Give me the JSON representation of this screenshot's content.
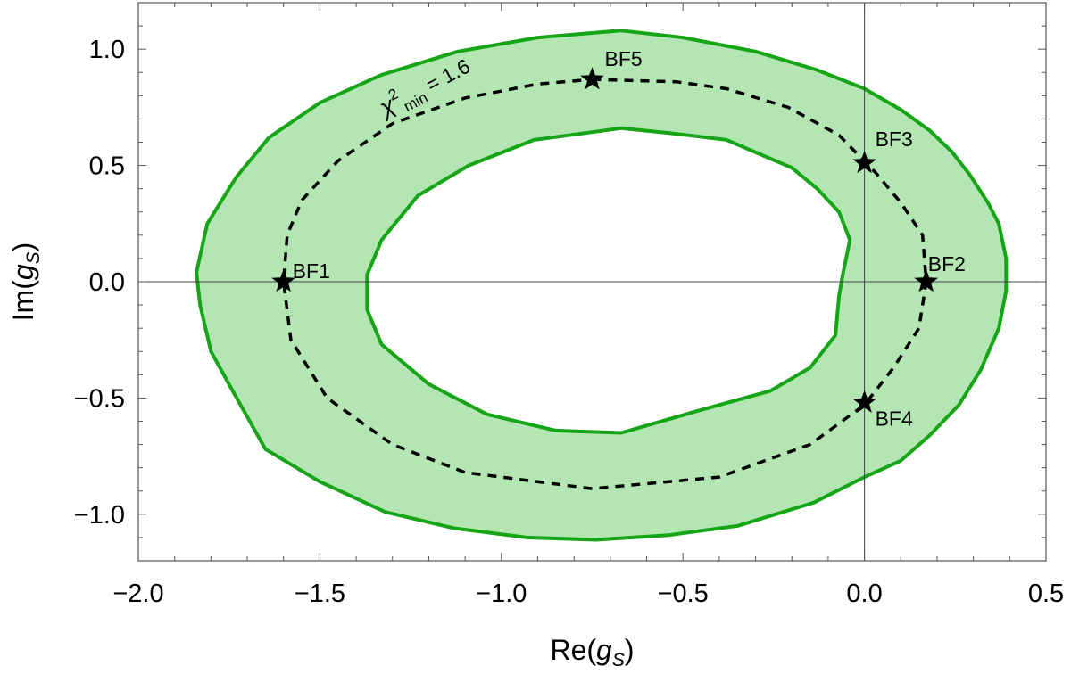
{
  "chart_data": {
    "type": "region",
    "xlabel": "Re(gS)",
    "ylabel": "Im(gS)",
    "xlim": [
      -2.0,
      0.5
    ],
    "ylim": [
      -1.2,
      1.2
    ],
    "x_ticks": [
      "−2.0",
      "−1.5",
      "−1.0",
      "−0.5",
      "0.0",
      "0.5"
    ],
    "y_ticks": [
      "−1.0",
      "−0.5",
      "0.0",
      "0.5",
      "1.0"
    ],
    "grid": false,
    "colors": {
      "band_fill": "#b3e6b3",
      "band_stroke": "#16a516",
      "contour": "#000000",
      "axes": "#555555"
    },
    "outer_boundary": [
      [
        -0.67,
        1.08
      ],
      [
        -0.5,
        1.05
      ],
      [
        -0.3,
        0.99
      ],
      [
        -0.13,
        0.91
      ],
      [
        0.0,
        0.83
      ],
      [
        0.1,
        0.74
      ],
      [
        0.18,
        0.65
      ],
      [
        0.24,
        0.56
      ],
      [
        0.29,
        0.46
      ],
      [
        0.34,
        0.34
      ],
      [
        0.37,
        0.25
      ],
      [
        0.39,
        0.1
      ],
      [
        0.39,
        -0.04
      ],
      [
        0.37,
        -0.2
      ],
      [
        0.32,
        -0.38
      ],
      [
        0.26,
        -0.53
      ],
      [
        0.18,
        -0.66
      ],
      [
        0.1,
        -0.77
      ],
      [
        0.0,
        -0.84
      ],
      [
        -0.14,
        -0.95
      ],
      [
        -0.35,
        -1.05
      ],
      [
        -0.54,
        -1.09
      ],
      [
        -0.74,
        -1.11
      ],
      [
        -0.93,
        -1.1
      ],
      [
        -1.13,
        -1.06
      ],
      [
        -1.32,
        -0.99
      ],
      [
        -1.5,
        -0.86
      ],
      [
        -1.65,
        -0.72
      ],
      [
        -1.74,
        -0.47
      ],
      [
        -1.8,
        -0.3
      ],
      [
        -1.83,
        -0.1
      ],
      [
        -1.84,
        0.04
      ],
      [
        -1.81,
        0.25
      ],
      [
        -1.73,
        0.45
      ],
      [
        -1.64,
        0.62
      ],
      [
        -1.5,
        0.77
      ],
      [
        -1.33,
        0.89
      ],
      [
        -1.12,
        0.99
      ],
      [
        -0.9,
        1.05
      ],
      [
        -0.67,
        1.08
      ]
    ],
    "inner_boundary": [
      [
        -0.67,
        0.66
      ],
      [
        -0.54,
        0.64
      ],
      [
        -0.38,
        0.61
      ],
      [
        -0.2,
        0.49
      ],
      [
        -0.13,
        0.4
      ],
      [
        -0.07,
        0.3
      ],
      [
        -0.04,
        0.18
      ],
      [
        -0.06,
        0.03
      ],
      [
        -0.07,
        -0.06
      ],
      [
        -0.08,
        -0.23
      ],
      [
        -0.15,
        -0.37
      ],
      [
        -0.26,
        -0.47
      ],
      [
        -0.47,
        -0.56
      ],
      [
        -0.67,
        -0.65
      ],
      [
        -0.85,
        -0.64
      ],
      [
        -1.04,
        -0.57
      ],
      [
        -1.2,
        -0.44
      ],
      [
        -1.33,
        -0.27
      ],
      [
        -1.37,
        -0.12
      ],
      [
        -1.37,
        0.03
      ],
      [
        -1.33,
        0.18
      ],
      [
        -1.23,
        0.37
      ],
      [
        -1.09,
        0.5
      ],
      [
        -0.91,
        0.61
      ],
      [
        -0.67,
        0.66
      ]
    ],
    "contour": {
      "label_main": "χ",
      "label_sup": "2",
      "label_sub": "min",
      "label_value": "= 1.6",
      "points": [
        [
          -0.75,
          0.87
        ],
        [
          -0.52,
          0.86
        ],
        [
          -0.38,
          0.83
        ],
        [
          -0.21,
          0.75
        ],
        [
          -0.07,
          0.63
        ],
        [
          0.03,
          0.47
        ],
        [
          0.1,
          0.34
        ],
        [
          0.16,
          0.2
        ],
        [
          0.17,
          0.0
        ],
        [
          0.15,
          -0.2
        ],
        [
          0.08,
          -0.37
        ],
        [
          0.0,
          -0.53
        ],
        [
          -0.15,
          -0.7
        ],
        [
          -0.4,
          -0.84
        ],
        [
          -0.75,
          -0.89
        ],
        [
          -1.1,
          -0.82
        ],
        [
          -1.3,
          -0.7
        ],
        [
          -1.48,
          -0.5
        ],
        [
          -1.58,
          -0.25
        ],
        [
          -1.6,
          0.0
        ],
        [
          -1.59,
          0.2
        ],
        [
          -1.55,
          0.35
        ],
        [
          -1.45,
          0.52
        ],
        [
          -1.3,
          0.68
        ],
        [
          -1.1,
          0.79
        ],
        [
          -0.9,
          0.85
        ],
        [
          -0.75,
          0.87
        ]
      ]
    },
    "best_fits": [
      {
        "name": "BF1",
        "x": -1.6,
        "y": 0.0
      },
      {
        "name": "BF2",
        "x": 0.17,
        "y": 0.0
      },
      {
        "name": "BF3",
        "x": 0.0,
        "y": 0.51
      },
      {
        "name": "BF4",
        "x": 0.0,
        "y": -0.52
      },
      {
        "name": "BF5",
        "x": -0.75,
        "y": 0.87
      }
    ]
  }
}
